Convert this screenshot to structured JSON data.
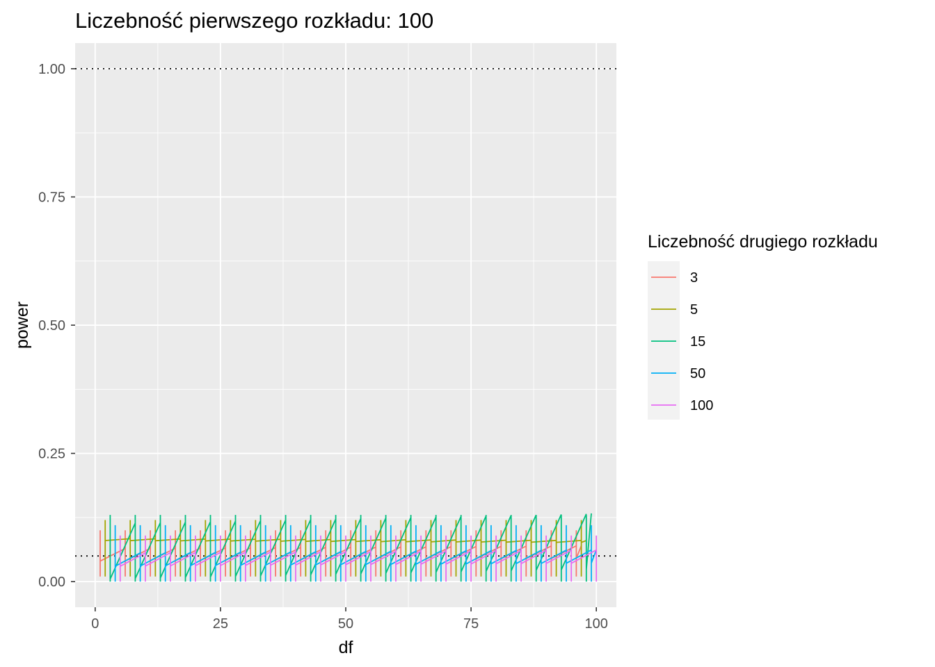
{
  "chart_data": {
    "type": "line",
    "title": "Liczebność pierwszego rozkładu: 100",
    "xlabel": "df",
    "ylabel": "power",
    "xlim": [
      -4,
      104
    ],
    "ylim": [
      -0.05,
      1.05
    ],
    "x_ticks": [
      0,
      25,
      50,
      75,
      100
    ],
    "x_tick_labels": [
      "0",
      "25",
      "50",
      "75",
      "100"
    ],
    "y_ticks": [
      0,
      0.25,
      0.5,
      0.75,
      1.0
    ],
    "y_tick_labels": [
      "0.00",
      "0.25",
      "0.50",
      "0.75",
      "1.00"
    ],
    "grid": true,
    "reference_lines": [
      {
        "y": 1.0,
        "style": "dotted",
        "color": "#000000"
      },
      {
        "y": 0.05,
        "style": "dotted",
        "color": "#000000"
      }
    ],
    "legend": {
      "title": "Liczebność drugiego rozkładu",
      "position": "right"
    },
    "series": [
      {
        "name": "3",
        "color": "#F8766D",
        "period": 5,
        "offset": 1,
        "drop_low": 0.01,
        "drop_high": 0.1,
        "x_start": 1,
        "x_end": 97,
        "y_start": 0.04,
        "y_end": 0.058
      },
      {
        "name": "5",
        "color": "#A3A500",
        "period": 5,
        "offset": 2,
        "drop_low": 0.01,
        "drop_high": 0.12,
        "x_start": 2,
        "x_end": 98,
        "y_start": 0.08,
        "y_end": 0.068
      },
      {
        "name": "15",
        "color": "#00BF7D",
        "period": 5,
        "offset": 3,
        "drop_low": 0.0,
        "drop_high": 0.13,
        "x_start": 3,
        "x_end": 99,
        "y_start": 0.005,
        "y_end": 0.068
      },
      {
        "name": "50",
        "color": "#00B0F6",
        "period": 5,
        "offset": 4,
        "drop_low": 0.0,
        "drop_high": 0.11,
        "x_start": 4,
        "x_end": 100,
        "y_start": 0.03,
        "y_end": 0.05
      },
      {
        "name": "100",
        "color": "#E76BF3",
        "period": 5,
        "offset": 5,
        "drop_low": 0.0,
        "drop_high": 0.09,
        "x_start": 5,
        "x_end": 100,
        "y_start": 0.03,
        "y_end": 0.05
      }
    ]
  }
}
